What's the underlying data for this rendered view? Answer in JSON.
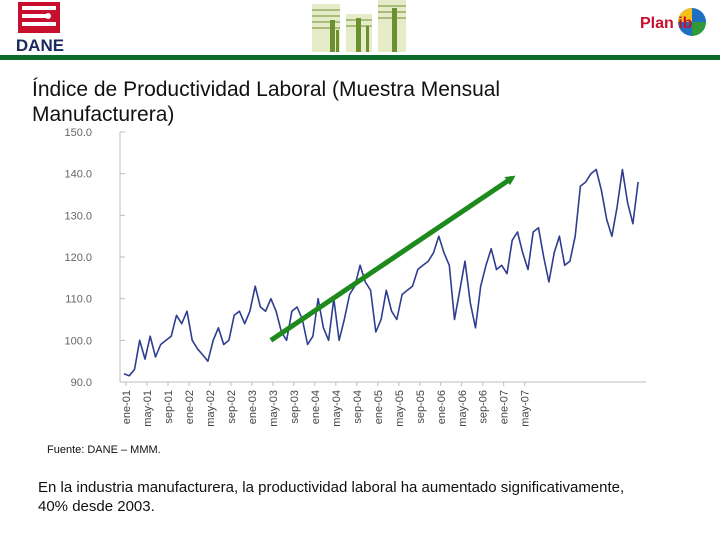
{
  "header": {
    "logo_left_text": "DANE",
    "logo_right_text": "Plan ib",
    "colors": {
      "rule": "#0b6b2a",
      "dane_red": "#c8102e",
      "bar_green": "#6c8f2f"
    }
  },
  "title": "Índice de Productividad Laboral (Muestra Mensual Manufacturera)",
  "chart_data": {
    "type": "line",
    "title": "",
    "xlabel": "",
    "ylabel": "",
    "ylim": [
      90,
      150
    ],
    "yticks": [
      "150.0",
      "140.0",
      "130.0",
      "120.0",
      "110.0",
      "100.0",
      "90.0"
    ],
    "ytick_values": [
      150,
      140,
      130,
      120,
      110,
      100,
      90
    ],
    "xticks": [
      "ene-01",
      "may-01",
      "sep-01",
      "ene-02",
      "may-02",
      "sep-02",
      "ene-03",
      "may-03",
      "sep-03",
      "ene-04",
      "may-04",
      "sep-04",
      "ene-05",
      "may-05",
      "sep-05",
      "ene-06",
      "may-06",
      "sep-06",
      "ene-07",
      "may-07"
    ],
    "series": [
      {
        "name": "Índice de Productividad Laboral",
        "color": "#2f3d8f",
        "values": [
          92,
          91.5,
          93,
          100,
          95.5,
          101,
          96,
          99,
          100,
          101,
          106,
          104,
          107,
          100,
          98,
          96.5,
          95,
          100,
          103,
          99,
          100,
          106,
          107,
          104,
          107,
          113,
          108,
          107,
          110,
          107,
          102,
          100,
          107,
          108,
          105,
          99,
          101,
          110,
          103,
          100,
          110,
          100,
          105,
          111,
          113,
          118,
          114,
          112,
          102,
          105,
          112,
          107,
          105,
          111,
          112,
          113,
          117,
          118,
          119,
          121,
          125,
          121,
          118,
          105,
          112,
          119,
          109,
          103,
          113,
          118,
          122,
          117,
          118,
          116,
          124,
          126,
          121,
          117,
          126,
          127,
          120,
          114,
          121,
          125,
          118,
          119,
          125,
          137,
          138,
          140,
          141,
          136,
          129,
          125,
          132,
          141,
          133,
          128,
          138
        ]
      }
    ],
    "trend_arrow": {
      "color": "#1e8a1e",
      "from": {
        "x": "may-03",
        "y": 100
      },
      "to": {
        "x": "mar-07",
        "y": 139
      }
    }
  },
  "source": "Fuente: DANE – MMM.",
  "caption": "En la industria manufacturera, la productividad laboral ha aumentado significativamente, 40% desde 2003."
}
